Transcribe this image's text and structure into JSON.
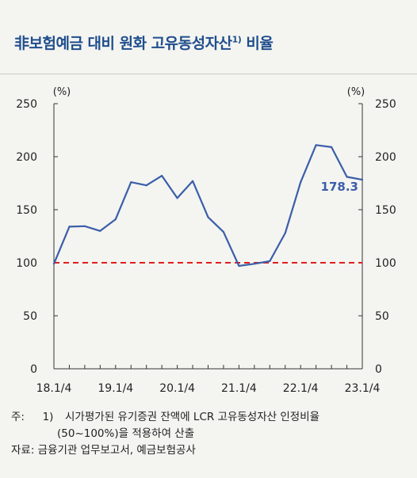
{
  "header": {
    "title": "非보험예금 대비 원화 고유동성자산",
    "title_sup": "1)",
    "title_suffix": " 비율"
  },
  "chart_data": {
    "type": "line",
    "y_unit_left": "(%)",
    "y_unit_right": "(%)",
    "ylim": [
      0,
      250
    ],
    "yticks": [
      "0",
      "50",
      "100",
      "150",
      "200",
      "250"
    ],
    "xticks": [
      "18.1/4",
      "19.1/4",
      "20.1/4",
      "21.1/4",
      "22.1/4",
      "23.1/4"
    ],
    "series": [
      {
        "color": "#3a5ea8",
        "values": [
          99,
          134,
          134.5,
          130,
          141,
          176,
          173,
          182,
          161,
          177,
          143,
          129,
          97,
          99,
          101.5,
          128,
          176,
          211,
          209,
          181,
          178.3
        ]
      }
    ],
    "reference_line": {
      "value": 100,
      "color": "#e01e1e",
      "style": "dashed"
    },
    "last_value_label": "178.3"
  },
  "footnotes": {
    "note_prefix": "주:",
    "note_num": "1)",
    "note_line1": "시가평가된 유기증권 잔액에 LCR 고유동성자산 인정비율",
    "note_line2": "(50~100%)을 적용하여 산출",
    "source": "자료: 금융기관 업무보고서, 예금보험공사"
  }
}
